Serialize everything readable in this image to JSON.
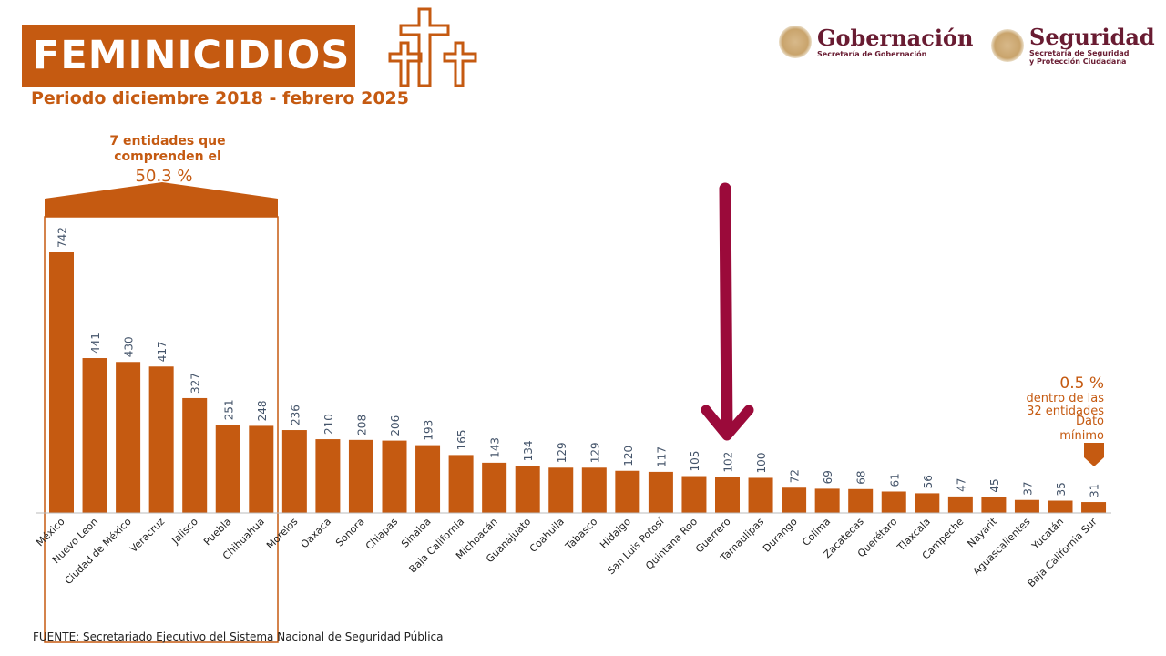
{
  "header": {
    "title": "FEMINICIDIOS",
    "subtitle": "Periodo diciembre 2018 - febrero 2025",
    "icon": "three-crosses-icon"
  },
  "logos": [
    {
      "name": "Gobernación",
      "sub": "Secretaría de Gobernación"
    },
    {
      "name": "Seguridad",
      "sub": "Secretaría de Seguridad",
      "sub2": "y Protección Ciudadana"
    }
  ],
  "annotations": {
    "top_group_line1": "7 entidades que",
    "top_group_line2": "comprenden el",
    "top_group_pct": "50.3 %",
    "min_pct": "0.5 %",
    "min_line1": "dentro de las",
    "min_line2": "32 entidades",
    "min_line3": "Dato",
    "min_line4": "mínimo",
    "highlight": "Guerrero"
  },
  "colors": {
    "bar": "#c55a11",
    "value_label": "#44546a",
    "arrow": "#9b0a3a"
  },
  "footer": {
    "source": "FUENTE: Secretariado Ejecutivo del Sistema Nacional de Seguridad Pública"
  },
  "chart_data": {
    "type": "bar",
    "title": "FEMINICIDIOS",
    "subtitle": "Periodo diciembre 2018 - febrero 2025",
    "xlabel": "",
    "ylabel": "",
    "ylim": [
      0,
      742
    ],
    "grid": false,
    "categories": [
      "México",
      "Nuevo León",
      "Ciudad de México",
      "Veracruz",
      "Jalisco",
      "Puebla",
      "Chihuahua",
      "Morelos",
      "Oaxaca",
      "Sonora",
      "Chiapas",
      "Sinaloa",
      "Baja California",
      "Michoacán",
      "Guanajuato",
      "Coahuila",
      "Tabasco",
      "Hidalgo",
      "San Luis Potosí",
      "Quintana Roo",
      "Guerrero",
      "Tamaulipas",
      "Durango",
      "Colima",
      "Zacatecas",
      "Querétaro",
      "Tlaxcala",
      "Campeche",
      "Nayarit",
      "Aguascalientes",
      "Yucatán",
      "Baja California Sur"
    ],
    "values": [
      742,
      441,
      430,
      417,
      327,
      251,
      248,
      236,
      210,
      208,
      206,
      193,
      165,
      143,
      134,
      129,
      129,
      120,
      117,
      105,
      102,
      100,
      72,
      69,
      68,
      61,
      56,
      47,
      45,
      37,
      35,
      31
    ]
  }
}
